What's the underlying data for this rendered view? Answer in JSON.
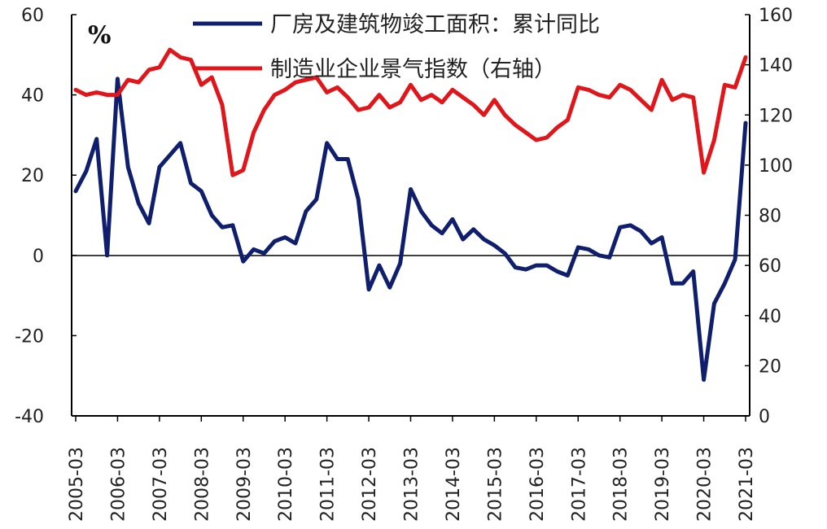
{
  "chart_data": {
    "type": "line",
    "unit_label": "%",
    "x_tick_labels": [
      "2005-03",
      "2006-03",
      "2007-03",
      "2008-03",
      "2009-03",
      "2010-03",
      "2011-03",
      "2012-03",
      "2013-03",
      "2014-03",
      "2015-03",
      "2016-03",
      "2017-03",
      "2018-03",
      "2019-03",
      "2020-03",
      "2021-03"
    ],
    "x_start": "2005-03",
    "x_end": "2021-03",
    "x_frequency": "quarterly",
    "y_left": {
      "ylim": [
        -40,
        60
      ],
      "ticks": [
        -40,
        -20,
        0,
        20,
        40,
        60
      ]
    },
    "y_right": {
      "ylim": [
        0,
        160
      ],
      "ticks": [
        0,
        20,
        40,
        60,
        80,
        100,
        120,
        140,
        160
      ]
    },
    "legend_position": "top-right",
    "grid": false,
    "zero_line": true,
    "series": [
      {
        "name": "厂房及建筑物竣工面积：累计同比",
        "axis": "left",
        "color": "#0f1f6e",
        "values": [
          16,
          21,
          29,
          0,
          44,
          22,
          13,
          8,
          22,
          25,
          28,
          18,
          16,
          10,
          7,
          7.5,
          -1.5,
          1.5,
          0.5,
          3.5,
          4.5,
          3,
          11,
          14,
          28,
          24,
          24,
          14,
          -8.5,
          -2.5,
          -8,
          -2,
          16.5,
          11,
          7.5,
          5.5,
          9,
          4,
          6.5,
          4,
          2.5,
          0.5,
          -3,
          -3.5,
          -2.5,
          -2.5,
          -4,
          -5,
          2,
          1.5,
          0,
          -0.5,
          7,
          7.5,
          6,
          3,
          4.5,
          -7,
          -7,
          -4,
          -31,
          -12,
          -7,
          -1,
          33
        ]
      },
      {
        "name": "制造业企业景气指数（右轴）",
        "axis": "right",
        "color": "#e0161b",
        "values": [
          130,
          128,
          129,
          128,
          128,
          134,
          133,
          138,
          139,
          146,
          143,
          142,
          132,
          135,
          124,
          96,
          98,
          113,
          122,
          128,
          130,
          133,
          134,
          135,
          129,
          131,
          127,
          122,
          123,
          128,
          123,
          125,
          132,
          126,
          128,
          125,
          130,
          127,
          124,
          120,
          126,
          120,
          116,
          113,
          110,
          111,
          115,
          118,
          131,
          130,
          128,
          127,
          132,
          130,
          126,
          122,
          134,
          126,
          128,
          127,
          97,
          110,
          132,
          131,
          143
        ]
      }
    ]
  }
}
